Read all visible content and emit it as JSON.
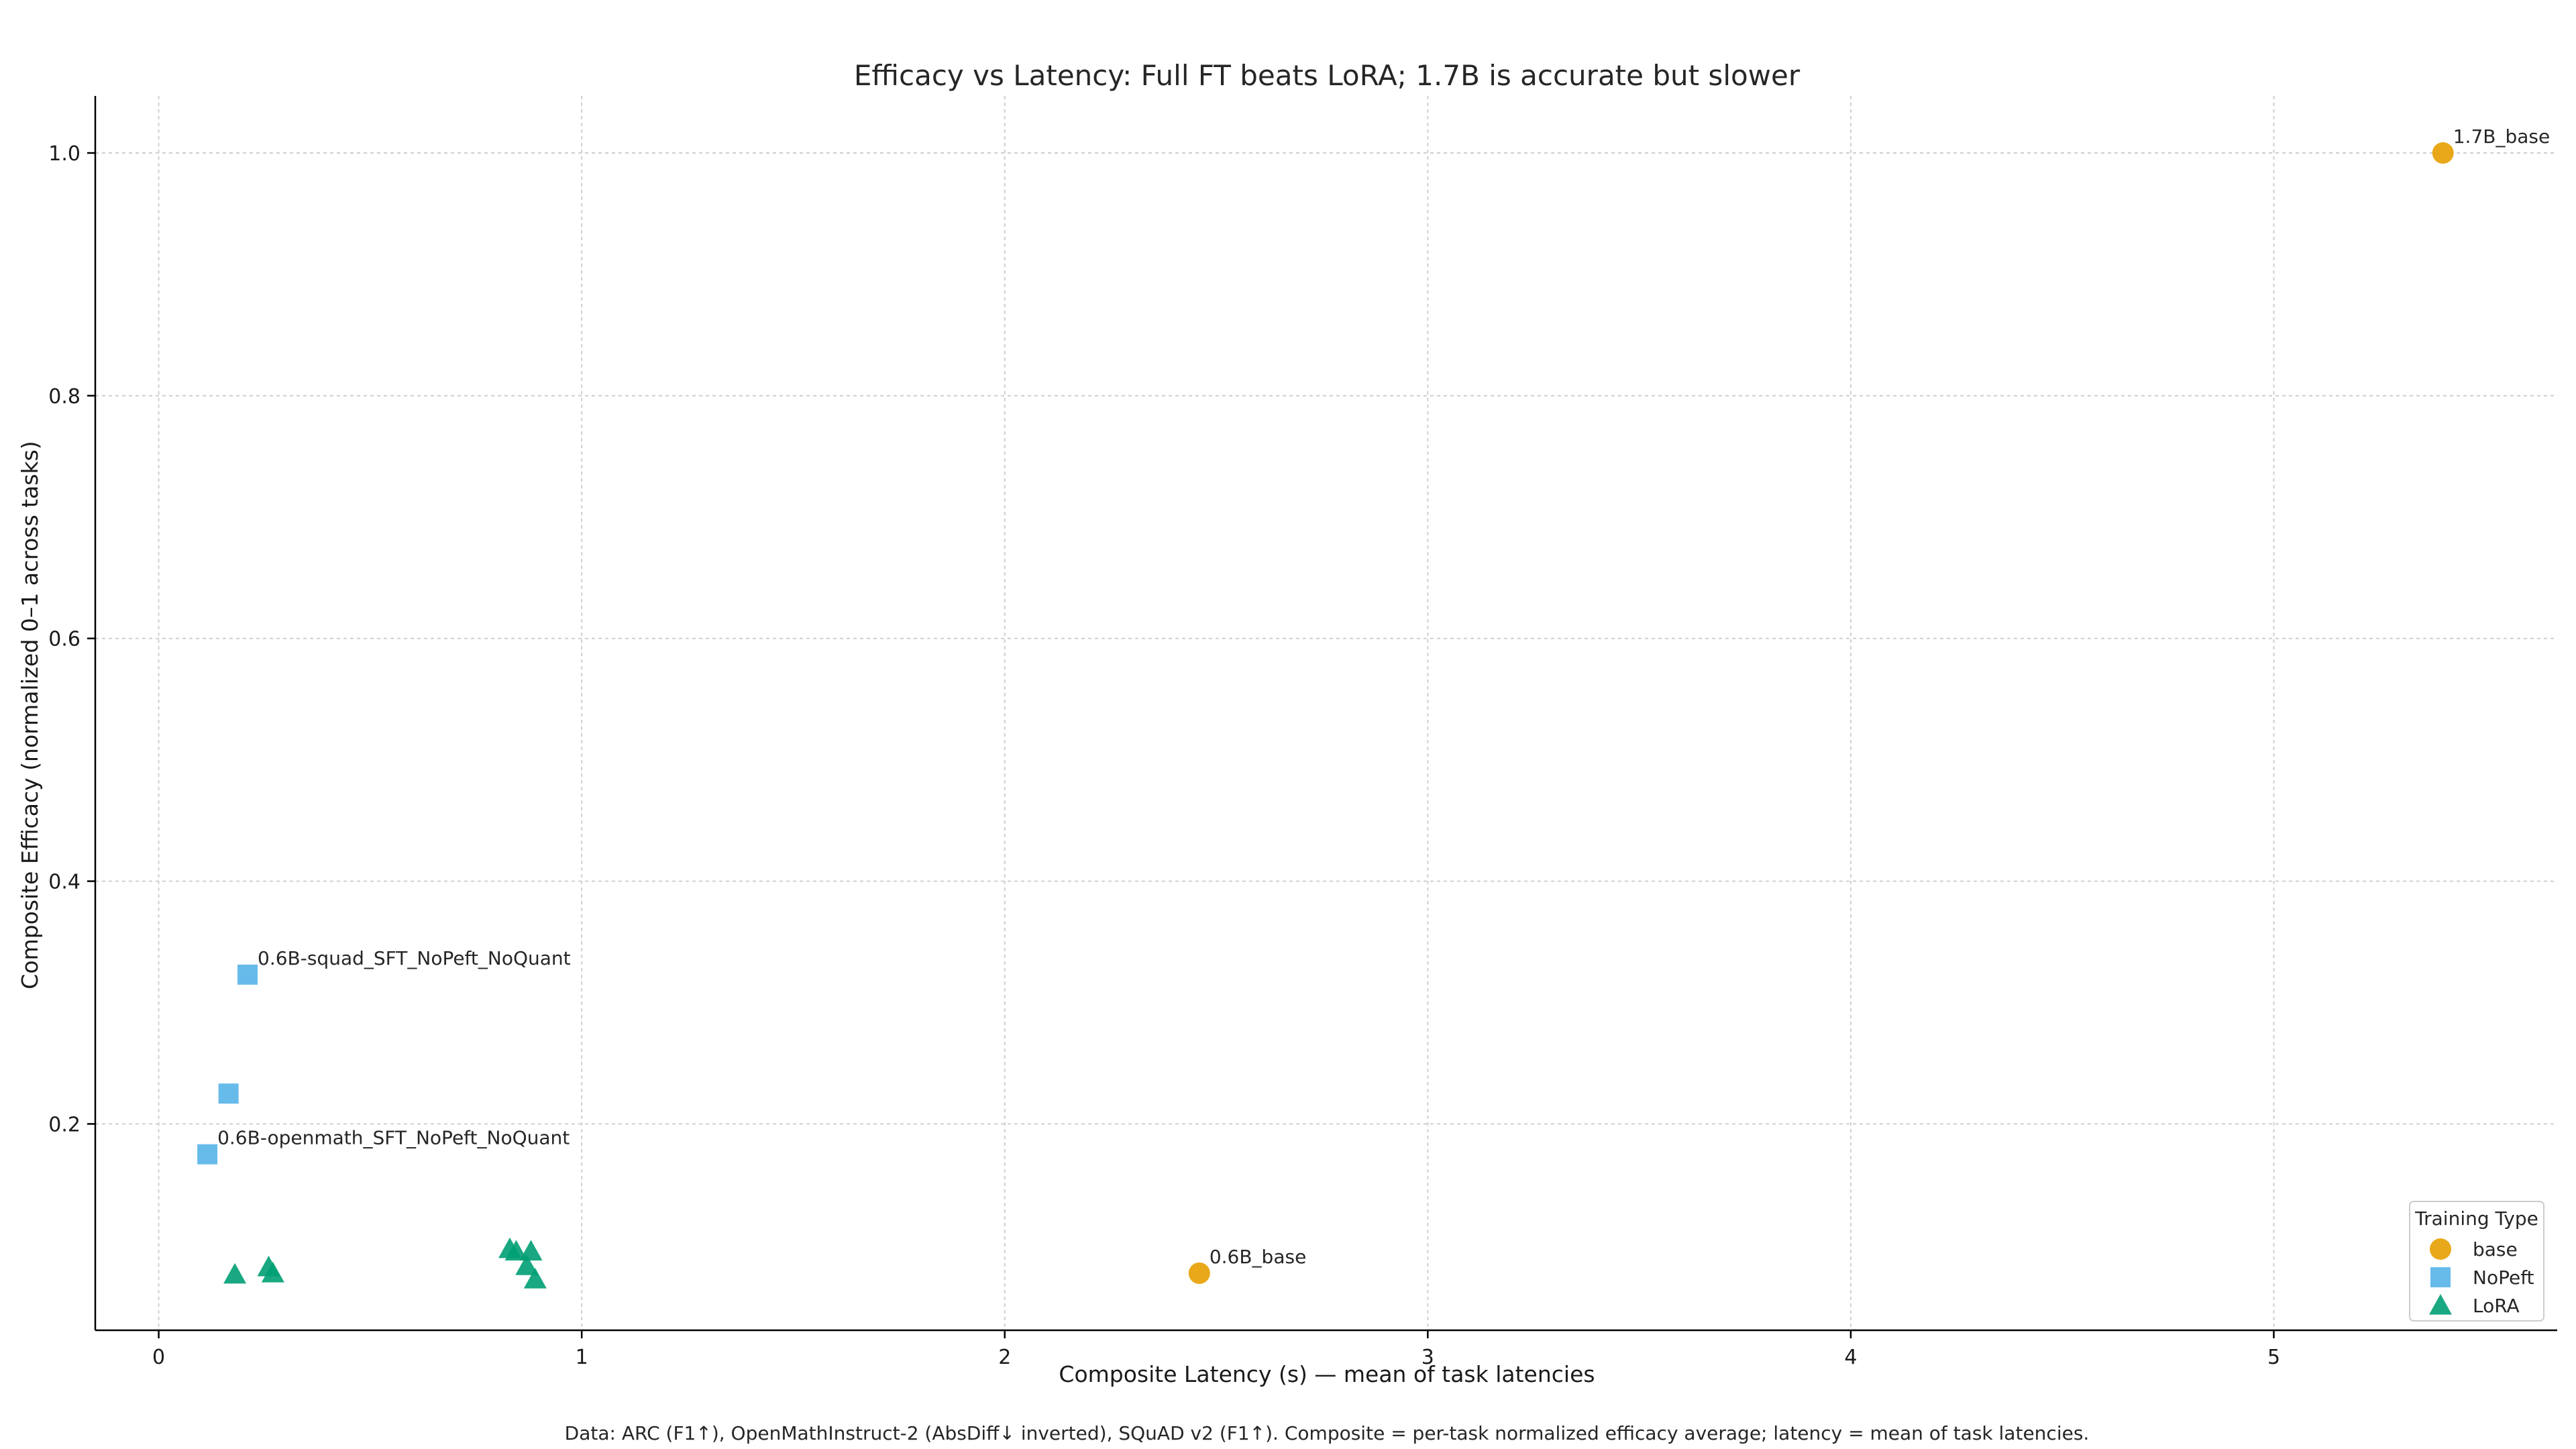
{
  "chart_data": {
    "type": "scatter",
    "title": "Efficacy vs Latency: Full FT beats LoRA; 1.7B is accurate but slower",
    "xlabel": "Composite Latency (s)  —  mean of task latencies",
    "ylabel": "Composite Efficacy (normalized 0–1 across tasks)",
    "footnote": "Data: ARC (F1↑), OpenMathInstruct-2 (AbsDiff↓ inverted), SQuAD v2 (F1↑). Composite = per-task normalized efficacy average; latency = mean of task latencies.",
    "xlim": [
      -0.15,
      5.67
    ],
    "ylim": [
      0.03,
      1.047
    ],
    "x_ticks": [
      0,
      1,
      2,
      3,
      4,
      5
    ],
    "x_tick_labels": [
      "0",
      "1",
      "2",
      "3",
      "4",
      "5"
    ],
    "y_ticks": [
      0.2,
      0.4,
      0.6,
      0.8,
      1.0
    ],
    "y_tick_labels": [
      "0.2",
      "0.4",
      "0.6",
      "0.8",
      "1.0"
    ],
    "grid": true,
    "legend": {
      "title": "Training Type",
      "position": "bottom-right"
    },
    "series": [
      {
        "name": "base",
        "marker": "circle",
        "color": "#E69F00",
        "points": [
          {
            "x": 5.4,
            "y": 1.0,
            "label": "1.7B_base"
          },
          {
            "x": 2.46,
            "y": 0.077,
            "label": "0.6B_base"
          }
        ]
      },
      {
        "name": "NoPeft",
        "marker": "square",
        "color": "#56B4E9",
        "points": [
          {
            "x": 0.21,
            "y": 0.323,
            "label": "0.6B-squad_SFT_NoPeft_NoQuant"
          },
          {
            "x": 0.165,
            "y": 0.225,
            "label": ""
          },
          {
            "x": 0.115,
            "y": 0.175,
            "label": "0.6B-openmath_SFT_NoPeft_NoQuant"
          }
        ]
      },
      {
        "name": "LoRA",
        "marker": "triangle",
        "color": "#009E73",
        "points": [
          {
            "x": 0.18,
            "y": 0.076,
            "label": ""
          },
          {
            "x": 0.26,
            "y": 0.082,
            "label": ""
          },
          {
            "x": 0.27,
            "y": 0.077,
            "label": ""
          },
          {
            "x": 0.83,
            "y": 0.097,
            "label": ""
          },
          {
            "x": 0.845,
            "y": 0.095,
            "label": ""
          },
          {
            "x": 0.88,
            "y": 0.095,
            "label": ""
          },
          {
            "x": 0.87,
            "y": 0.083,
            "label": ""
          },
          {
            "x": 0.89,
            "y": 0.072,
            "label": ""
          }
        ]
      }
    ]
  }
}
